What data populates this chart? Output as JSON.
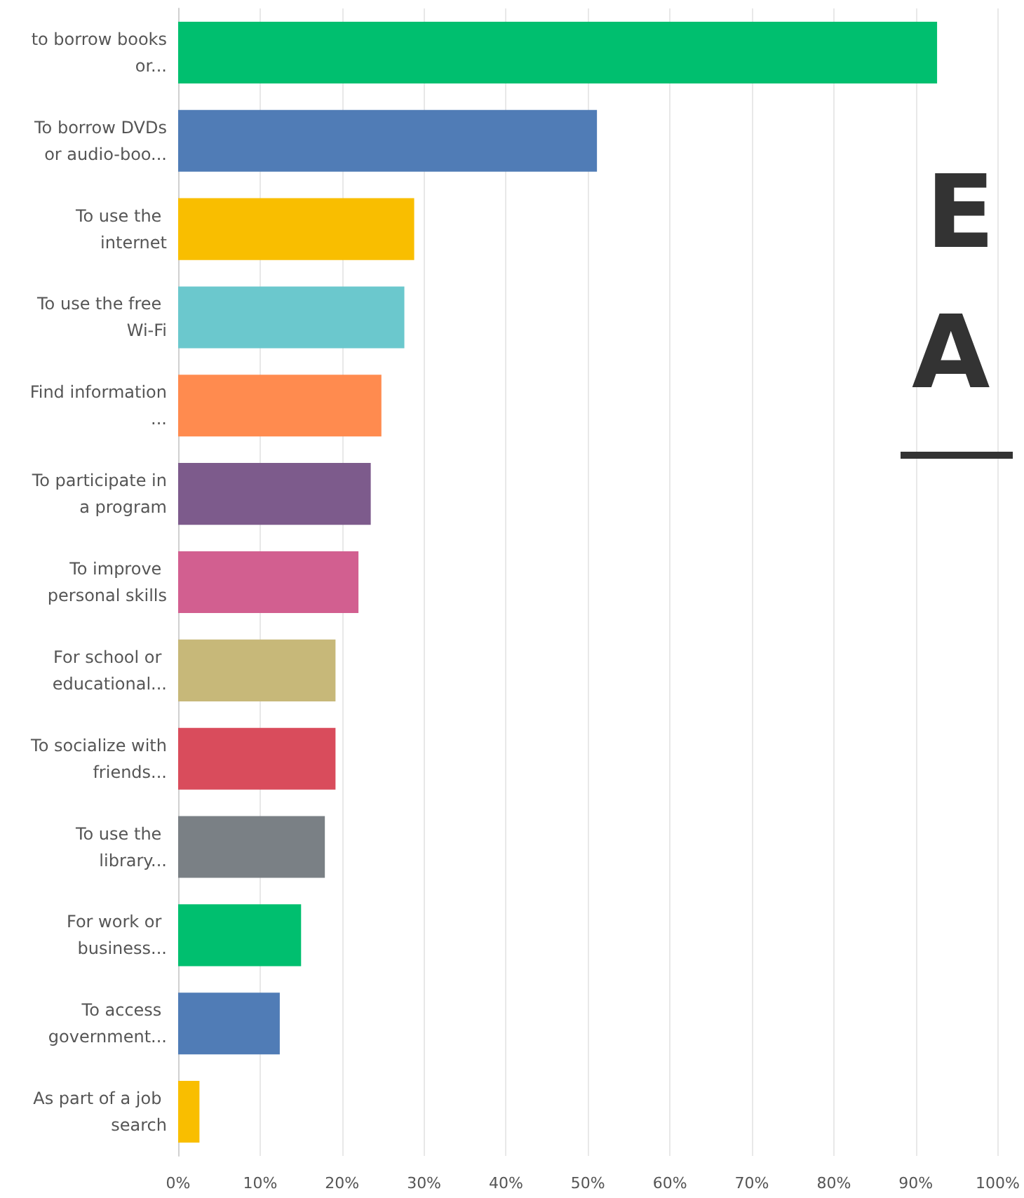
{
  "chart_data": {
    "type": "bar",
    "orientation": "horizontal",
    "categories": [
      "to borrow books or...",
      "To borrow DVDs or audio-boo...",
      "To use the internet",
      "To use the free Wi-Fi",
      "Find information ...",
      "To participate in a program",
      "To improve personal skills",
      "For school or educational...",
      "To socialize with friends...",
      "To use the library...",
      "For work or business...",
      "To access government...",
      "As part of a job search"
    ],
    "values": [
      92.6,
      51.1,
      28.8,
      27.6,
      24.8,
      23.5,
      22.0,
      19.2,
      19.2,
      17.9,
      15.0,
      12.4,
      2.6
    ],
    "colors": [
      "#00bf6f",
      "#507cb6",
      "#f9be00",
      "#6bc8cd",
      "#ff8b4f",
      "#7d5b8c",
      "#d25f90",
      "#c7b879",
      "#d94c5c",
      "#7a8085",
      "#00bf6f",
      "#507cb6",
      "#f9be00"
    ],
    "xlim": [
      0,
      100
    ],
    "xticks": [
      {
        "value": 0,
        "label": "0%"
      },
      {
        "value": 10,
        "label": "10%"
      },
      {
        "value": 20,
        "label": "20%"
      },
      {
        "value": 30,
        "label": "30%"
      },
      {
        "value": 40,
        "label": "40%"
      },
      {
        "value": 50,
        "label": "50%"
      },
      {
        "value": 60,
        "label": "60%"
      },
      {
        "value": 70,
        "label": "70%"
      },
      {
        "value": 80,
        "label": "80%"
      },
      {
        "value": 90,
        "label": "90%"
      },
      {
        "value": 100,
        "label": "100%"
      }
    ],
    "grid": "x",
    "annotations": [
      "E",
      "A"
    ]
  }
}
